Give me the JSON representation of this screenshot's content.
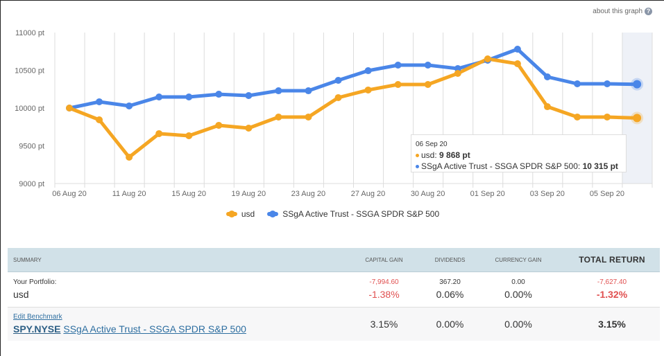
{
  "header": {
    "about_label": "about this graph",
    "help_icon_glyph": "?"
  },
  "colors": {
    "usd": "#f5a623",
    "benchmark": "#4a86e8",
    "grid": "#dcdcdc",
    "highlight": "#eef1f7",
    "negative": "#e05050"
  },
  "chart_data": {
    "type": "line",
    "title": "",
    "xlabel": "",
    "ylabel": "",
    "ylim": [
      9000,
      11000
    ],
    "y_ticks": [
      "9000 pt",
      "9500 pt",
      "10000 pt",
      "10500 pt",
      "11000 pt"
    ],
    "y_tick_values": [
      9000,
      9500,
      10000,
      10500,
      11000
    ],
    "x_tick_labels": [
      "06 Aug 20",
      "11 Aug 20",
      "15 Aug 20",
      "19 Aug 20",
      "23 Aug 20",
      "27 Aug 20",
      "30 Aug 20",
      "01 Sep 20",
      "03 Sep 20",
      "05 Sep 20"
    ],
    "grid": true,
    "legend_position": "bottom-center",
    "series": [
      {
        "name": "usd",
        "color": "#f5a623",
        "values": [
          10000,
          9844,
          9349,
          9661,
          9633,
          9771,
          9734,
          9881,
          9881,
          10138,
          10239,
          10312,
          10312,
          10459,
          10651,
          10587,
          10018,
          9881,
          9881,
          9868
        ]
      },
      {
        "name": "SSgA Active Trust - SSGA SPDR S&P 500",
        "color": "#4a86e8",
        "values": [
          10000,
          10083,
          10028,
          10147,
          10147,
          10183,
          10165,
          10229,
          10229,
          10367,
          10495,
          10569,
          10569,
          10523,
          10633,
          10780,
          10413,
          10321,
          10321,
          10315
        ]
      }
    ],
    "highlighted_index": 19
  },
  "legend": [
    {
      "label": "usd"
    },
    {
      "label": "SSgA Active Trust - SSGA SPDR S&P 500"
    }
  ],
  "tooltip": {
    "date": "06 Sep 20",
    "lines": [
      {
        "label": "usd: ",
        "value": "9 868 pt"
      },
      {
        "label": "SSgA Active Trust - SSGA SPDR S&P 500: ",
        "value": "10 315 pt"
      }
    ]
  },
  "summary": {
    "headers": {
      "summary": "SUMMARY",
      "capital_gain": "CAPITAL GAIN",
      "dividends": "DIVIDENDS",
      "currency_gain": "CURRENCY GAIN",
      "total_return": "TOTAL RETURN"
    },
    "portfolio": {
      "label": "Your Portfolio:",
      "name": "usd",
      "capital_gain_amount": "-7,994.60",
      "capital_gain_pct": "-1.38%",
      "dividends_amount": "367.20",
      "dividends_pct": "0.06%",
      "currency_gain_amount": "0.00",
      "currency_gain_pct": "0.00%",
      "total_return_amount": "-7,627.40",
      "total_return_pct": "-1.32%"
    },
    "benchmark": {
      "edit_label": "Edit Benchmark",
      "ticker": "SPY.NYSE",
      "name": "SSgA Active Trust - SSGA SPDR S&P 500",
      "capital_gain_pct": "3.15%",
      "dividends_pct": "0.00%",
      "currency_gain_pct": "0.00%",
      "total_return_pct": "3.15%"
    }
  }
}
